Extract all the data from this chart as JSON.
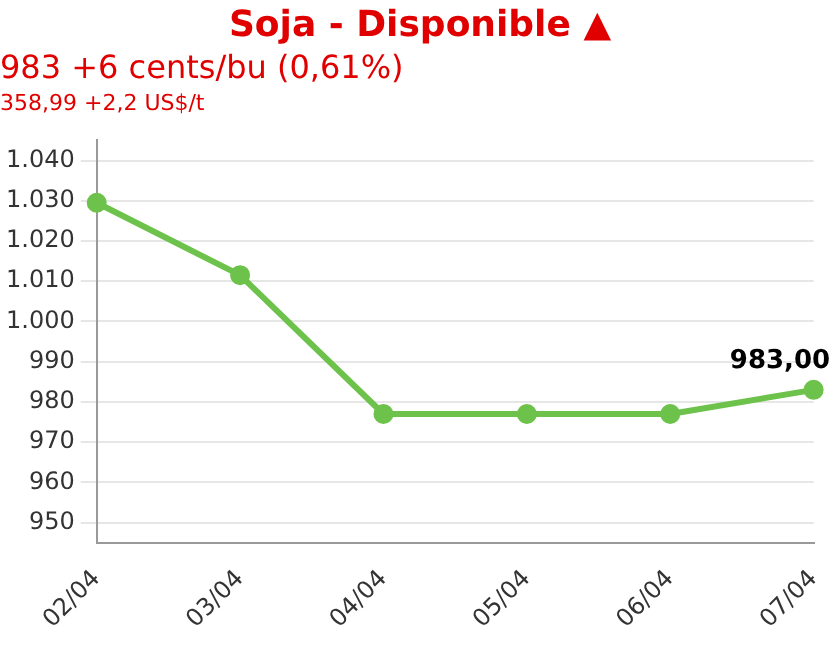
{
  "chart_data": {
    "type": "line",
    "title": "Soja - Disponible ▲",
    "subtitle": "983 +6 cents/bu (0,61%)",
    "annotations": [
      "358,99 +2,2 US$/t"
    ],
    "categories": [
      "02/04",
      "03/04",
      "04/04",
      "05/04",
      "06/04",
      "07/04"
    ],
    "series": [
      {
        "color": "#6cc24a",
        "values": [
          1029.5,
          1011.5,
          977,
          977,
          977,
          983
        ],
        "value_labels": [
          null,
          null,
          null,
          null,
          null,
          "983,00"
        ]
      }
    ],
    "ylim": [
      945,
      1045
    ],
    "yticks": [
      {
        "value": 950,
        "label": "950"
      },
      {
        "value": 960,
        "label": "960"
      },
      {
        "value": 970,
        "label": "970"
      },
      {
        "value": 980,
        "label": "980"
      },
      {
        "value": 990,
        "label": "990"
      },
      {
        "value": 1000,
        "label": "1.000"
      },
      {
        "value": 1010,
        "label": "1.010"
      },
      {
        "value": 1020,
        "label": "1.020"
      },
      {
        "value": 1030,
        "label": "1.030"
      },
      {
        "value": 1040,
        "label": "1.040"
      }
    ],
    "grid": "y",
    "marker": "circle",
    "line_style": "solid",
    "legend": false
  }
}
